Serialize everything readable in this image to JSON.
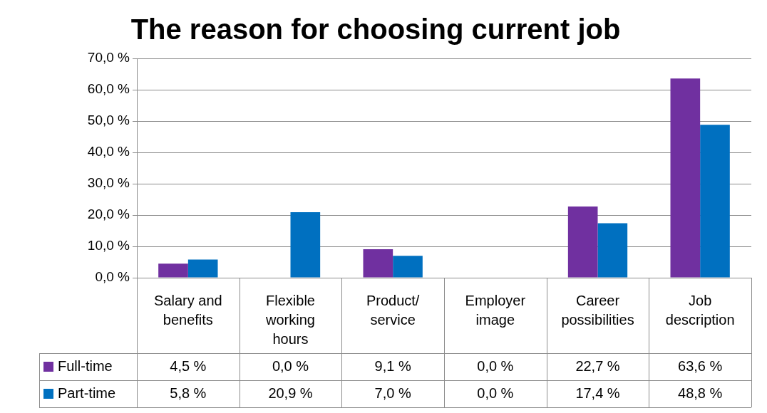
{
  "chart_data": {
    "type": "bar",
    "title": "The reason for choosing current job",
    "categories": [
      "Salary and benefits",
      "Flexible working hours",
      "Product/ service",
      "Employer image",
      "Career possibilities",
      "Job description"
    ],
    "series": [
      {
        "name": "Full-time",
        "color": "#7030a0",
        "values": [
          4.5,
          0.0,
          9.1,
          0.0,
          22.7,
          63.6
        ],
        "value_labels": [
          "4,5 %",
          "0,0 %",
          "9,1 %",
          "0,0 %",
          "22,7 %",
          "63,6 %"
        ]
      },
      {
        "name": "Part-time",
        "color": "#0070c0",
        "values": [
          5.8,
          20.9,
          7.0,
          0.0,
          17.4,
          48.8
        ],
        "value_labels": [
          "5,8 %",
          "20,9 %",
          "7,0 %",
          "0,0 %",
          "17,4 %",
          "48,8 %"
        ]
      }
    ],
    "ylim": [
      0,
      70
    ],
    "yticks": [
      {
        "value": 0,
        "label": "0,0 %"
      },
      {
        "value": 10,
        "label": "10,0 %"
      },
      {
        "value": 20,
        "label": "20,0 %"
      },
      {
        "value": 30,
        "label": "30,0 %"
      },
      {
        "value": 40,
        "label": "40,0 %"
      },
      {
        "value": 50,
        "label": "50,0 %"
      },
      {
        "value": 60,
        "label": "60,0 %"
      },
      {
        "value": 70,
        "label": "70,0 %"
      }
    ],
    "grid": "y",
    "legend": "bottom"
  }
}
